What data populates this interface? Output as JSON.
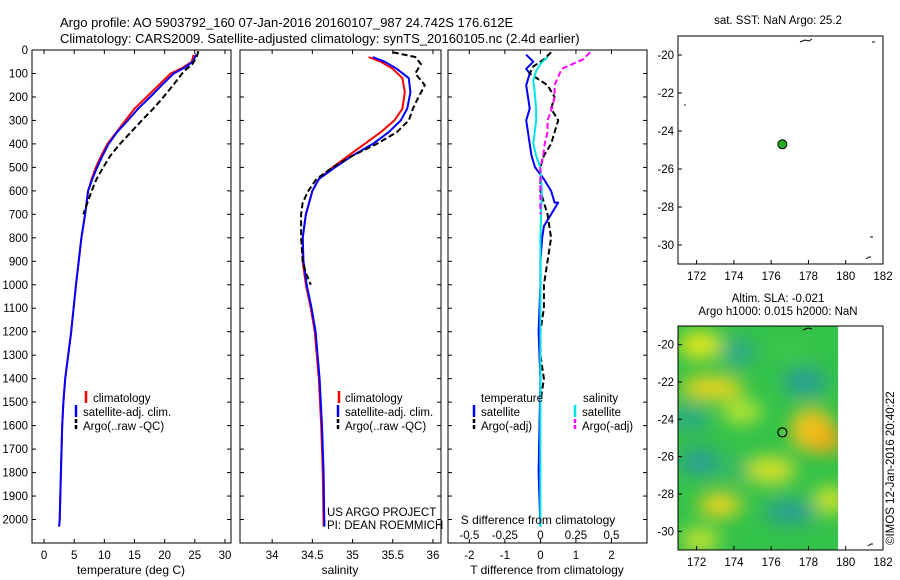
{
  "header": {
    "line1": "Argo profile: AO 5903792_160 07-Jan-2016 20160107_987 24.742S 176.612E",
    "line2": "Climatology: CARS2009. Satellite-adjusted climatology: synTS_20160105.nc (2.4d earlier)"
  },
  "footer": {
    "project": "US ARGO PROJECT",
    "pi": "PI: DEAN ROEMMICH",
    "copyright": "©IMOS 12-Jan-2016 20:40:22"
  },
  "colors": {
    "climatology": "#ff0000",
    "satellite": "#0000ff",
    "argo": "#000000",
    "sal_satellite": "#00e5e5",
    "sal_argo": "#ff00ff",
    "marker": "#22aa22"
  },
  "chart_data": [
    {
      "type": "line",
      "name": "temperature",
      "xlabel": "temperature (deg C)",
      "ylabel": "",
      "xlim": [
        -2,
        31
      ],
      "ylim": [
        2100,
        0
      ],
      "xticks": [
        0,
        5,
        10,
        15,
        20,
        25,
        30
      ],
      "yticks": [
        0,
        100,
        200,
        300,
        400,
        500,
        600,
        700,
        800,
        900,
        1000,
        1100,
        1200,
        1300,
        1400,
        1500,
        1600,
        1700,
        1800,
        1900,
        2000
      ],
      "legend": [
        "climatology",
        "satellite-adj. clim.",
        "Argo(..raw -QC)"
      ],
      "series": [
        {
          "name": "climatology",
          "style": "solid",
          "color": "#ff0000",
          "x": [
            24.8,
            24.5,
            23,
            21,
            19,
            17,
            15,
            13.5,
            12,
            10.5,
            9.5,
            8.6,
            7.9,
            7.3,
            6.8,
            6.2,
            5.3,
            4.5,
            4.0,
            3.5,
            3.2,
            3.0,
            2.8,
            2.6,
            2.5
          ],
          "y": [
            20,
            50,
            75,
            100,
            150,
            200,
            250,
            300,
            350,
            400,
            450,
            500,
            550,
            600,
            700,
            800,
            1000,
            1200,
            1300,
            1400,
            1500,
            1600,
            1800,
            2000,
            2030
          ]
        },
        {
          "name": "satellite-adj. clim.",
          "style": "solid",
          "color": "#0000ff",
          "x": [
            25.2,
            24.7,
            23.3,
            21.5,
            19.5,
            17.6,
            15.6,
            13.9,
            12.1,
            10.7,
            9.7,
            8.8,
            8.0,
            7.3,
            6.8,
            6.2,
            5.3,
            4.5,
            4.0,
            3.5,
            3.2,
            3.0,
            2.8,
            2.6,
            2.5
          ],
          "y": [
            20,
            50,
            75,
            100,
            150,
            200,
            250,
            300,
            350,
            400,
            450,
            500,
            550,
            600,
            700,
            800,
            1000,
            1200,
            1300,
            1400,
            1500,
            1600,
            1800,
            2000,
            2030
          ]
        },
        {
          "name": "Argo(..raw -QC)",
          "style": "dashed",
          "color": "#000000",
          "x": [
            25.6,
            25.3,
            24.6,
            23.2,
            21.4,
            19.8,
            18.1,
            16.2,
            14.4,
            12.6,
            11.0,
            9.8,
            8.7,
            7.9,
            7.2,
            6.5
          ],
          "y": [
            5,
            30,
            60,
            90,
            150,
            200,
            250,
            300,
            350,
            400,
            450,
            500,
            550,
            600,
            650,
            700
          ]
        }
      ]
    },
    {
      "type": "line",
      "name": "salinity",
      "xlabel": "salinity",
      "ylabel": "",
      "xlim": [
        33.6,
        36.1
      ],
      "ylim": [
        2100,
        0
      ],
      "xticks": [
        34,
        34.5,
        35,
        35.5,
        36
      ],
      "legend": [
        "climatology",
        "satellite-adj. clim.",
        "Argo(..raw -QC)"
      ],
      "series": [
        {
          "name": "climatology",
          "style": "solid",
          "color": "#ff0000",
          "x": [
            35.2,
            35.35,
            35.5,
            35.62,
            35.65,
            35.62,
            35.52,
            35.35,
            35.15,
            34.95,
            34.75,
            34.58,
            34.5,
            34.42,
            34.38,
            34.38,
            34.42,
            34.48,
            34.53,
            34.58,
            34.61,
            34.63,
            34.64
          ],
          "y": [
            30,
            50,
            80,
            120,
            180,
            250,
            300,
            350,
            400,
            450,
            500,
            550,
            600,
            700,
            800,
            900,
            1000,
            1100,
            1200,
            1400,
            1600,
            1800,
            2030
          ]
        },
        {
          "name": "satellite-adj. clim.",
          "style": "solid",
          "color": "#0000ff",
          "x": [
            35.25,
            35.4,
            35.55,
            35.7,
            35.72,
            35.68,
            35.6,
            35.45,
            35.25,
            35.0,
            34.78,
            34.58,
            34.5,
            34.42,
            34.38,
            34.39,
            34.43,
            34.49,
            34.54,
            34.59,
            34.62,
            34.64,
            34.65
          ],
          "y": [
            30,
            50,
            80,
            120,
            180,
            250,
            300,
            350,
            400,
            450,
            500,
            550,
            600,
            700,
            800,
            900,
            1000,
            1100,
            1200,
            1400,
            1600,
            1800,
            2030
          ]
        },
        {
          "name": "Argo(..raw -QC)",
          "style": "dashed",
          "color": "#000000",
          "x": [
            35.5,
            35.78,
            35.85,
            35.78,
            35.9,
            35.82,
            35.75,
            35.7,
            35.55,
            35.3,
            35.0,
            34.75,
            34.55,
            34.45,
            34.38,
            34.36,
            34.36,
            34.38,
            34.42,
            34.48
          ],
          "y": [
            10,
            30,
            60,
            100,
            150,
            200,
            250,
            300,
            350,
            400,
            450,
            500,
            550,
            600,
            650,
            700,
            800,
            900,
            950,
            1000
          ]
        }
      ]
    },
    {
      "type": "line",
      "name": "differences",
      "xlabel": "T difference from climatology",
      "xlabel2": "S difference from climatology",
      "xlim": [
        -2.6,
        3.0
      ],
      "xlim2": [
        -0.65,
        0.75
      ],
      "ylim": [
        2100,
        0
      ],
      "xticks": [
        -2,
        -1,
        0,
        1,
        2
      ],
      "xticks2": [
        -0.5,
        -0.25,
        0,
        0.25,
        0.5
      ],
      "xticklabels2": [
        "-0.5",
        "-0.25",
        "0",
        "0.25",
        "0.5"
      ],
      "legend_titles": [
        "temperature",
        "salinity"
      ],
      "legend": [
        "satellite",
        "Argo(-adj)",
        "satellite",
        "Argo(-adj)"
      ],
      "series": [
        {
          "name": "temperature satellite",
          "style": "solid",
          "color": "#0000ff",
          "x": [
            -0.4,
            -0.2,
            -0.4,
            -0.3,
            -0.4,
            -0.35,
            -0.3,
            -0.4,
            -0.35,
            -0.3,
            -0.25,
            -0.15,
            0.1,
            0.3,
            0.4,
            0.5,
            0.3,
            0.1,
            0.05,
            0,
            0,
            -0.05,
            0,
            -0.05,
            0
          ],
          "y": [
            20,
            50,
            80,
            100,
            150,
            200,
            250,
            300,
            350,
            400,
            450,
            500,
            550,
            600,
            650,
            650,
            700,
            750,
            800,
            900,
            1000,
            1200,
            1400,
            1800,
            2030
          ]
        },
        {
          "name": "temperature Argo(-adj)",
          "style": "dashed",
          "color": "#000000",
          "x": [
            0.3,
            0.1,
            -0.2,
            -0.3,
            0.2,
            0.4,
            0.3,
            0.5,
            0.4,
            0.3,
            0.1,
            0,
            0,
            0.2,
            0.3,
            0.2,
            0.1,
            0.1,
            0,
            0,
            0.1,
            0
          ],
          "y": [
            10,
            40,
            70,
            100,
            150,
            200,
            250,
            300,
            350,
            400,
            450,
            500,
            600,
            700,
            800,
            900,
            1000,
            1100,
            1200,
            1300,
            1400,
            1500
          ]
        },
        {
          "name": "salinity satellite",
          "style": "solid",
          "color": "#00e5e5",
          "x": [
            0.05,
            0,
            -0.03,
            -0.05,
            -0.04,
            -0.03,
            -0.03,
            -0.04,
            -0.05,
            -0.03,
            0,
            0.01,
            0,
            0,
            0,
            0
          ],
          "y": [
            30,
            60,
            90,
            130,
            180,
            250,
            300,
            350,
            400,
            450,
            500,
            600,
            800,
            1000,
            1500,
            2030
          ]
        },
        {
          "name": "salinity Argo(-adj)",
          "style": "dashed",
          "color": "#ff00ff",
          "x": [
            0.35,
            0.3,
            0.15,
            0.1,
            0.1,
            0.08,
            0.05,
            0.05,
            0.03,
            0.02,
            0,
            0,
            0
          ],
          "y": [
            10,
            40,
            80,
            150,
            200,
            250,
            300,
            350,
            400,
            450,
            500,
            600,
            700
          ]
        }
      ]
    },
    {
      "type": "scatter",
      "name": "SST map",
      "title": "sat. SST: NaN Argo: 25.2",
      "xlim": [
        171,
        182
      ],
      "ylim": [
        -31,
        -19
      ],
      "xticks": [
        172,
        174,
        176,
        178,
        180,
        182
      ],
      "yticks": [
        -20,
        -22,
        -24,
        -26,
        -28,
        -30
      ],
      "points": [
        {
          "x": 176.6,
          "y": -24.7,
          "label": "Argo"
        }
      ]
    },
    {
      "type": "heatmap",
      "name": "SLA map",
      "title": "Altim. SLA: -0.021",
      "subtitle": "Argo h1000: 0.015 h2000: NaN",
      "xlim": [
        171,
        182
      ],
      "ylim": [
        -31,
        -19
      ],
      "xticks": [
        172,
        174,
        176,
        178,
        180,
        182
      ],
      "yticks": [
        -20,
        -22,
        -24,
        -26,
        -28,
        -30
      ],
      "points": [
        {
          "x": 176.6,
          "y": -24.7,
          "label": "Argo"
        }
      ]
    }
  ]
}
